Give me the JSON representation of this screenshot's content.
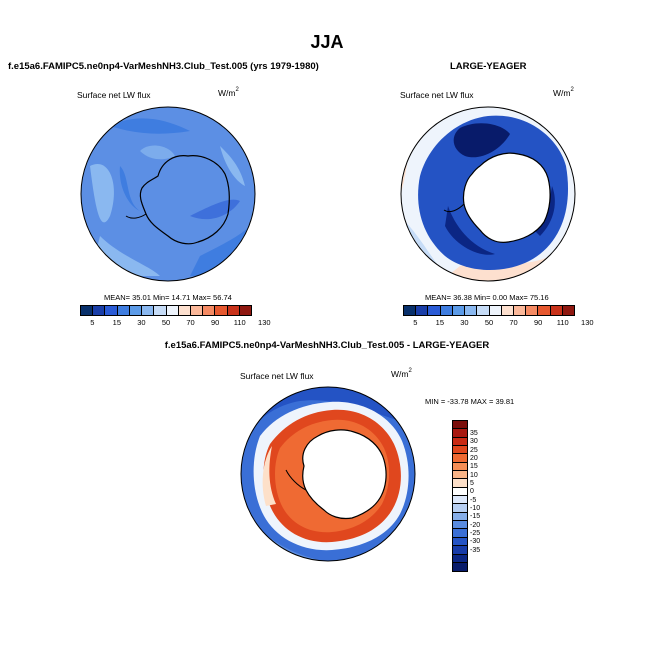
{
  "page": {
    "title": "JJA"
  },
  "panels": {
    "top_left": {
      "header": "f.e15a6.FAMIPC5.ne0np4-VarMeshNH3.Club_Test.005 (yrs 1979-1980)",
      "variable": "Surface net LW flux",
      "units": "W/m",
      "units_sup": "2",
      "stats": "MEAN=  35.01  Min=  14.71  Max=  56.74"
    },
    "top_right": {
      "header": "LARGE-YEAGER",
      "variable": "Surface net LW flux",
      "units": "W/m",
      "units_sup": "2",
      "stats": "MEAN=  36.38  Min=   0.00  Max=  75.16"
    },
    "bottom": {
      "header": "f.e15a6.FAMIPC5.ne0np4-VarMeshNH3.Club_Test.005 - LARGE-YEAGER",
      "variable": "Surface net LW flux",
      "units": "W/m",
      "units_sup": "2",
      "stats": "MIN = -33.78 MAX =  39.81"
    }
  },
  "colorbar_abs": {
    "colors": [
      "#08306b",
      "#1a3ea8",
      "#2a5bd6",
      "#3f7de0",
      "#5c9be8",
      "#8ab8f0",
      "#c6dcf7",
      "#eef4fc",
      "#fde0cf",
      "#fbb89a",
      "#f58a63",
      "#e6582f",
      "#c8321a",
      "#8f1810"
    ],
    "tick_labels": [
      "5",
      "15",
      "30",
      "50",
      "70",
      "90",
      "110",
      "130"
    ]
  },
  "colorbar_diff": {
    "colors": [
      "#7a0d0a",
      "#a81810",
      "#c92a14",
      "#e0471e",
      "#ef6a33",
      "#f58e56",
      "#fab487",
      "#fde0c9",
      "#ffffff",
      "#dde8fb",
      "#b7cff3",
      "#86aee9",
      "#5a8ce0",
      "#3a6fd6",
      "#2453c4",
      "#173ba8",
      "#0b2684",
      "#081b6a"
    ],
    "tick_labels": [
      "35",
      "30",
      "25",
      "20",
      "15",
      "10",
      "5",
      "0",
      "-5",
      "-10",
      "-15",
      "-20",
      "-25",
      "-30",
      "-35"
    ]
  }
}
